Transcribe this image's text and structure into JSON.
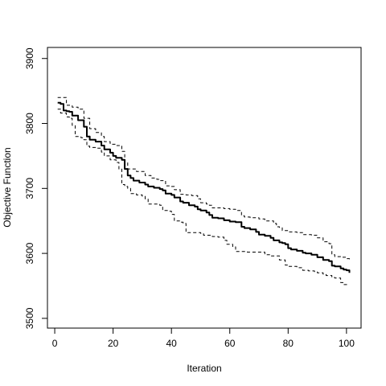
{
  "chart_data": {
    "type": "line",
    "title": "",
    "xlabel": "Iteration",
    "ylabel": "Objective Function",
    "xlim": [
      -2.5,
      105
    ],
    "ylim": [
      3485,
      3917
    ],
    "xticks": [
      0,
      20,
      40,
      60,
      80,
      100
    ],
    "yticks": [
      3500,
      3600,
      3700,
      3800,
      3900
    ],
    "grid": false,
    "legend": "none",
    "x": [
      1,
      101
    ],
    "series": [
      {
        "style": "solid",
        "color": "#000000",
        "points": [
          [
            1,
            3832
          ],
          [
            2,
            3830
          ],
          [
            3,
            3820
          ],
          [
            4,
            3819
          ],
          [
            5,
            3818
          ],
          [
            6,
            3812
          ],
          [
            8,
            3805
          ],
          [
            10,
            3795
          ],
          [
            11,
            3780
          ],
          [
            12,
            3775
          ],
          [
            14,
            3772
          ],
          [
            16,
            3766
          ],
          [
            17,
            3760
          ],
          [
            19,
            3755
          ],
          [
            20,
            3750
          ],
          [
            21,
            3747
          ],
          [
            23,
            3744
          ],
          [
            24,
            3730
          ],
          [
            25,
            3720
          ],
          [
            26,
            3716
          ],
          [
            27,
            3712
          ],
          [
            29,
            3709
          ],
          [
            31,
            3706
          ],
          [
            32,
            3703
          ],
          [
            34,
            3701
          ],
          [
            36,
            3699
          ],
          [
            37,
            3697
          ],
          [
            38,
            3692
          ],
          [
            40,
            3690
          ],
          [
            41,
            3686
          ],
          [
            43,
            3680
          ],
          [
            44,
            3678
          ],
          [
            46,
            3674
          ],
          [
            48,
            3672
          ],
          [
            49,
            3668
          ],
          [
            50,
            3666
          ],
          [
            52,
            3663
          ],
          [
            53,
            3659
          ],
          [
            54,
            3655
          ],
          [
            56,
            3654
          ],
          [
            58,
            3651
          ],
          [
            60,
            3649
          ],
          [
            62,
            3648
          ],
          [
            64,
            3641
          ],
          [
            65,
            3639
          ],
          [
            67,
            3637
          ],
          [
            69,
            3633
          ],
          [
            70,
            3629
          ],
          [
            72,
            3627
          ],
          [
            74,
            3624
          ],
          [
            75,
            3620
          ],
          [
            77,
            3617
          ],
          [
            78,
            3616
          ],
          [
            79,
            3614
          ],
          [
            80,
            3608
          ],
          [
            81,
            3606
          ],
          [
            83,
            3604
          ],
          [
            85,
            3601
          ],
          [
            86,
            3600
          ],
          [
            88,
            3598
          ],
          [
            90,
            3594
          ],
          [
            92,
            3590
          ],
          [
            94,
            3588
          ],
          [
            95,
            3581
          ],
          [
            96,
            3580
          ],
          [
            98,
            3577
          ],
          [
            99,
            3575
          ],
          [
            100,
            3574
          ],
          [
            101,
            3570
          ]
        ]
      },
      {
        "style": "dashed",
        "color": "#000000",
        "points": [
          [
            1,
            3840
          ],
          [
            3,
            3840
          ],
          [
            4,
            3828
          ],
          [
            6,
            3825
          ],
          [
            8,
            3822
          ],
          [
            10,
            3808
          ],
          [
            12,
            3792
          ],
          [
            14,
            3786
          ],
          [
            16,
            3780
          ],
          [
            17,
            3772
          ],
          [
            19,
            3768
          ],
          [
            21,
            3766
          ],
          [
            23,
            3757
          ],
          [
            24,
            3740
          ],
          [
            25,
            3730
          ],
          [
            28,
            3726
          ],
          [
            31,
            3720
          ],
          [
            33,
            3716
          ],
          [
            35,
            3714
          ],
          [
            36,
            3712
          ],
          [
            38,
            3704
          ],
          [
            40,
            3703
          ],
          [
            41,
            3698
          ],
          [
            43,
            3691
          ],
          [
            45,
            3690
          ],
          [
            47,
            3689
          ],
          [
            49,
            3684
          ],
          [
            50,
            3678
          ],
          [
            52,
            3676
          ],
          [
            53,
            3674
          ],
          [
            54,
            3670
          ],
          [
            58,
            3669
          ],
          [
            60,
            3668
          ],
          [
            62,
            3666
          ],
          [
            64,
            3658
          ],
          [
            65,
            3656
          ],
          [
            67,
            3655
          ],
          [
            70,
            3653
          ],
          [
            72,
            3650
          ],
          [
            75,
            3646
          ],
          [
            76,
            3641
          ],
          [
            77,
            3640
          ],
          [
            78,
            3635
          ],
          [
            80,
            3633
          ],
          [
            83,
            3632
          ],
          [
            85,
            3629
          ],
          [
            88,
            3628
          ],
          [
            90,
            3624
          ],
          [
            92,
            3618
          ],
          [
            94,
            3615
          ],
          [
            95,
            3598
          ],
          [
            96,
            3595
          ],
          [
            98,
            3594
          ],
          [
            100,
            3592
          ],
          [
            101,
            3590
          ]
        ]
      },
      {
        "style": "dashed",
        "color": "#000000",
        "points": [
          [
            1,
            3822
          ],
          [
            2,
            3816
          ],
          [
            4,
            3810
          ],
          [
            5,
            3808
          ],
          [
            6,
            3797
          ],
          [
            7,
            3780
          ],
          [
            9,
            3778
          ],
          [
            10,
            3775
          ],
          [
            11,
            3765
          ],
          [
            12,
            3763
          ],
          [
            14,
            3762
          ],
          [
            16,
            3756
          ],
          [
            17,
            3750
          ],
          [
            19,
            3744
          ],
          [
            21,
            3740
          ],
          [
            22,
            3730
          ],
          [
            23,
            3706
          ],
          [
            24,
            3703
          ],
          [
            25,
            3700
          ],
          [
            26,
            3692
          ],
          [
            28,
            3690
          ],
          [
            30,
            3688
          ],
          [
            31,
            3684
          ],
          [
            32,
            3676
          ],
          [
            34,
            3676
          ],
          [
            36,
            3674
          ],
          [
            37,
            3666
          ],
          [
            39,
            3665
          ],
          [
            40,
            3660
          ],
          [
            41,
            3650
          ],
          [
            43,
            3648
          ],
          [
            44,
            3646
          ],
          [
            45,
            3632
          ],
          [
            48,
            3632
          ],
          [
            50,
            3631
          ],
          [
            51,
            3628
          ],
          [
            54,
            3626
          ],
          [
            56,
            3625
          ],
          [
            58,
            3620
          ],
          [
            59,
            3614
          ],
          [
            61,
            3610
          ],
          [
            62,
            3603
          ],
          [
            64,
            3603
          ],
          [
            66,
            3602
          ],
          [
            69,
            3602
          ],
          [
            70,
            3602
          ],
          [
            72,
            3598
          ],
          [
            74,
            3596
          ],
          [
            75,
            3596
          ],
          [
            77,
            3590
          ],
          [
            78,
            3590
          ],
          [
            79,
            3582
          ],
          [
            80,
            3580
          ],
          [
            83,
            3578
          ],
          [
            85,
            3574
          ],
          [
            87,
            3573
          ],
          [
            89,
            3572
          ],
          [
            90,
            3570
          ],
          [
            92,
            3568
          ],
          [
            93,
            3566
          ],
          [
            95,
            3563
          ],
          [
            96,
            3562
          ],
          [
            98,
            3555
          ],
          [
            99,
            3552
          ],
          [
            101,
            3552
          ]
        ]
      }
    ]
  }
}
